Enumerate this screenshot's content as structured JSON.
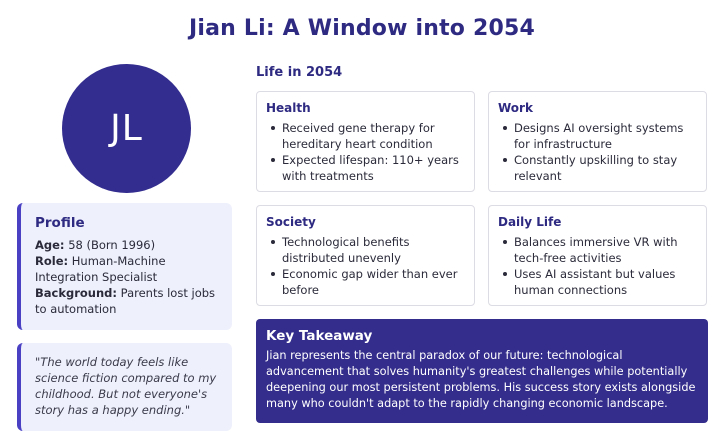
{
  "title": "Jian Li: A Window into 2054",
  "avatar": {
    "initials": "JL",
    "color": "#332d8f"
  },
  "profile": {
    "heading": "Profile",
    "age_label": "Age:",
    "age_value": "58 (Born 1996)",
    "role_label": "Role:",
    "role_value": "Human-Machine Integration Specialist",
    "background_label": "Background:",
    "background_value": "Parents lost jobs to automation"
  },
  "quote": "\"The world today feels like science fiction compared to my childhood. But not everyone's story has a happy ending.\"",
  "life": {
    "heading": "Life in 2054",
    "sections": [
      {
        "title": "Health",
        "items": [
          "Received gene therapy for hereditary heart condition",
          "Expected lifespan: 110+ years with treatments"
        ]
      },
      {
        "title": "Work",
        "items": [
          "Designs AI oversight systems for infrastructure",
          "Constantly upskilling to stay relevant"
        ]
      },
      {
        "title": "Society",
        "items": [
          "Technological benefits distributed unevenly",
          "Economic gap wider than ever before"
        ]
      },
      {
        "title": "Daily Life",
        "items": [
          "Balances immersive VR with tech-free activities",
          "Uses AI assistant but values human connections"
        ]
      }
    ]
  },
  "takeaway": {
    "heading": "Key Takeaway",
    "text": "Jian represents the central paradox of our future: technological advancement that solves humanity's greatest challenges while potentially deepening our most persistent problems. His success story exists alongside many who couldn't adapt to the rapidly changing economic landscape."
  },
  "colors": {
    "accent": "#2e2a82",
    "card_bg": "#eef0fc",
    "takeaway_bg": "#342d8c"
  }
}
